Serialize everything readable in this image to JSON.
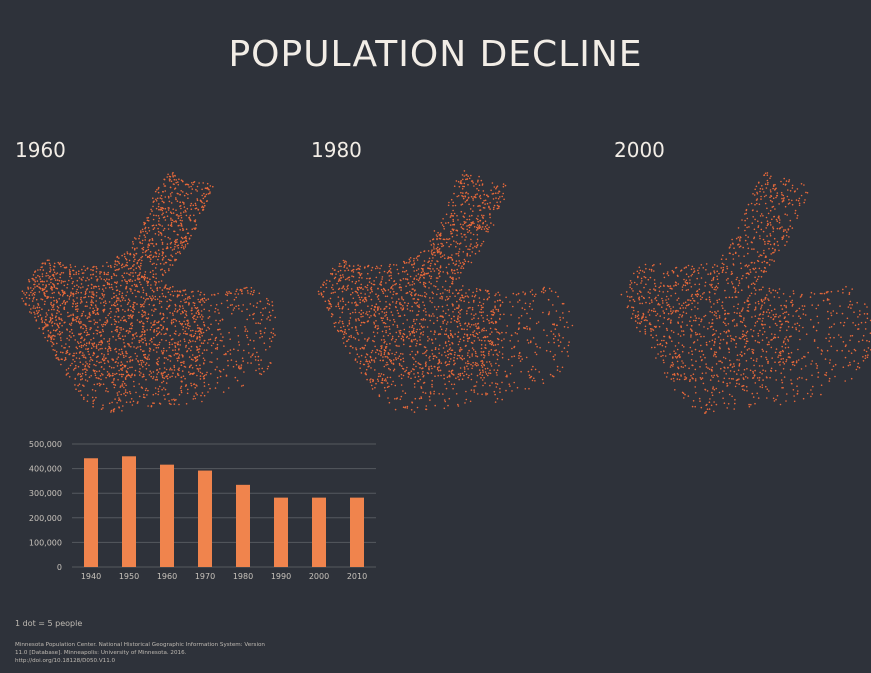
{
  "page": {
    "title": "POPULATION DECLINE"
  },
  "maps": [
    {
      "year": "1960",
      "density": 1.0
    },
    {
      "year": "1980",
      "density": 0.8
    },
    {
      "year": "2000",
      "density": 0.6
    }
  ],
  "colors": {
    "background": "#2e323a",
    "dots": "#e8693a",
    "bars": "#f0844d",
    "gridlines": "#55595f",
    "text": "#f2ede6"
  },
  "chart_data": {
    "type": "bar",
    "categories": [
      "1940",
      "1950",
      "1960",
      "1970",
      "1980",
      "1990",
      "2000",
      "2010"
    ],
    "values": [
      442000,
      450000,
      416000,
      392000,
      334000,
      282000,
      282000,
      282000
    ],
    "y_ticks": [
      "0",
      "100,000",
      "200,000",
      "300,000",
      "400,000",
      "500,000"
    ],
    "ylim": [
      0,
      500000
    ],
    "grid": true
  },
  "footer": {
    "legend": "1 dot = 5 people",
    "source": "Minnesota Population Center. National Historical Geographic Information System: Version 11.0 [Database]. Minneapolis: University of Minnesota. 2016. http://doi.org/10.18128/D050.V11.0"
  }
}
